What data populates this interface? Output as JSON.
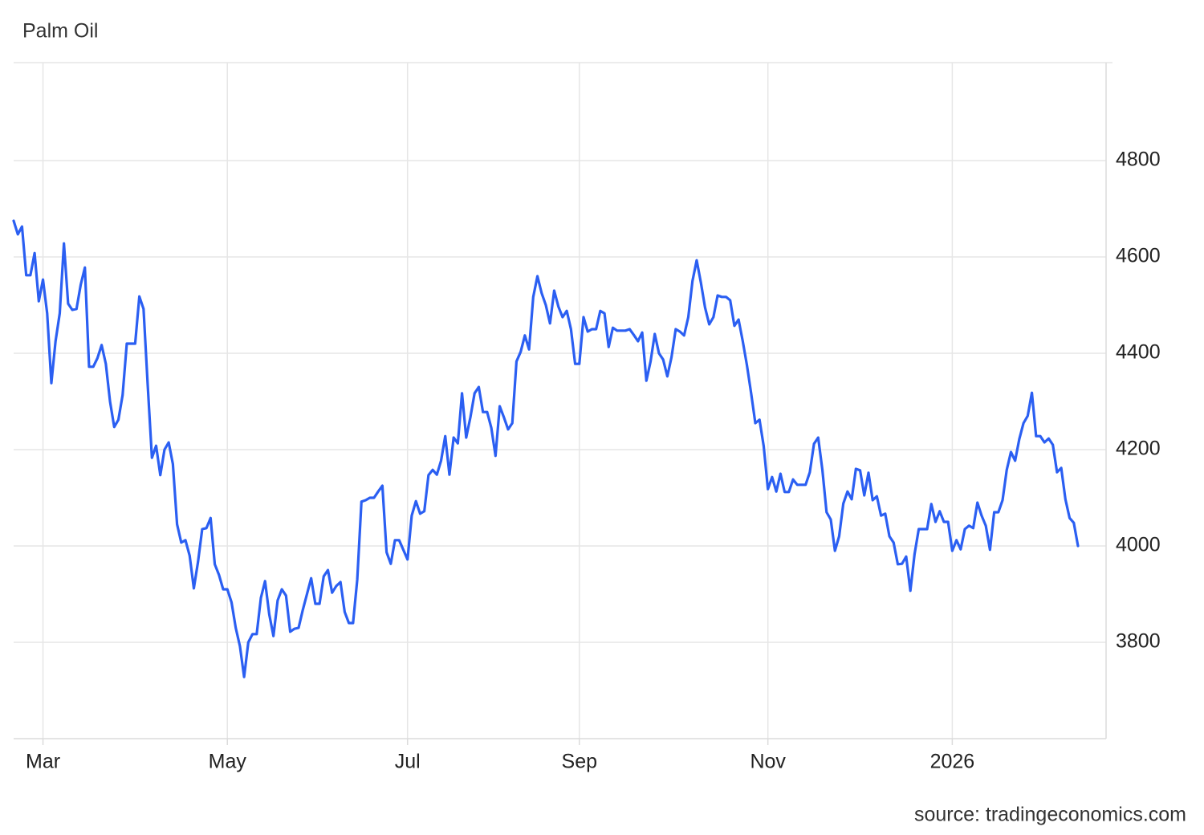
{
  "chart_data": {
    "type": "line",
    "title": "Palm Oil",
    "source": "source: tradingeconomics.com",
    "color": "#2b5ff2",
    "grid": true,
    "ylim": [
      3600,
      5000
    ],
    "yticks": [
      3800,
      4000,
      4200,
      4400,
      4600,
      4800
    ],
    "categories": [
      null,
      null,
      null,
      null,
      null,
      null,
      null,
      "Mar",
      null,
      null,
      null,
      null,
      null,
      null,
      null,
      null,
      null,
      null,
      null,
      null,
      null,
      null,
      null,
      null,
      null,
      null,
      null,
      null,
      null,
      null,
      null,
      null,
      null,
      null,
      null,
      null,
      null,
      null,
      null,
      null,
      null,
      null,
      null,
      null,
      null,
      null,
      null,
      null,
      null,
      null,
      null,
      "May",
      null,
      null,
      null,
      null,
      null,
      null,
      null,
      null,
      null,
      null,
      null,
      null,
      null,
      null,
      null,
      null,
      null,
      null,
      null,
      null,
      null,
      null,
      null,
      null,
      null,
      null,
      null,
      null,
      null,
      null,
      null,
      null,
      null,
      null,
      null,
      null,
      null,
      null,
      null,
      null,
      null,
      null,
      "Jul",
      null,
      null,
      null,
      null,
      null,
      null,
      null,
      null,
      null,
      null,
      null,
      null,
      null,
      null,
      null,
      null,
      null,
      null,
      null,
      null,
      null,
      null,
      null,
      null,
      null,
      null,
      null,
      null,
      null,
      null,
      null,
      null,
      null,
      null,
      null,
      null,
      null,
      null,
      null,
      null,
      "Sep",
      null,
      null,
      null,
      null,
      null,
      null,
      null,
      null,
      null,
      null,
      null,
      null,
      null,
      null,
      null,
      null,
      null,
      null,
      null,
      null,
      null,
      null,
      null,
      null,
      null,
      null,
      null,
      null,
      null,
      null,
      null,
      null,
      null,
      null,
      null,
      null,
      null,
      null,
      null,
      null,
      null,
      null,
      null,
      null,
      "Nov",
      null,
      null,
      null,
      null,
      null,
      null,
      null,
      null,
      null,
      null,
      null,
      null,
      null,
      null,
      null,
      null,
      null,
      null,
      null,
      null,
      null,
      null,
      null,
      null,
      null,
      null,
      null,
      null,
      null,
      null,
      null,
      null,
      null,
      null,
      null,
      null,
      null,
      null,
      null,
      null,
      null,
      null,
      null,
      "2026",
      null,
      null,
      null,
      null,
      null,
      null,
      null,
      null,
      null,
      null,
      null,
      null,
      null,
      null,
      null,
      null,
      null,
      null,
      null,
      null,
      null,
      null,
      null,
      null,
      null,
      null,
      null,
      null,
      null,
      null
    ],
    "values": [
      4675,
      4647,
      4663,
      4562,
      4562,
      4608,
      4508,
      4553,
      4483,
      4338,
      4425,
      4483,
      4628,
      4503,
      4490,
      4492,
      4542,
      4578,
      4372,
      4372,
      4390,
      4417,
      4378,
      4300,
      4247,
      4262,
      4313,
      4420,
      4420,
      4420,
      4518,
      4492,
      4333,
      4183,
      4208,
      4147,
      4200,
      4215,
      4170,
      4045,
      4007,
      4012,
      3980,
      3912,
      3967,
      4035,
      4037,
      4058,
      3962,
      3940,
      3910,
      3910,
      3883,
      3830,
      3792,
      3728,
      3800,
      3817,
      3817,
      3892,
      3927,
      3858,
      3813,
      3887,
      3910,
      3897,
      3822,
      3828,
      3830,
      3867,
      3900,
      3933,
      3880,
      3880,
      3937,
      3950,
      3903,
      3917,
      3925,
      3863,
      3840,
      3840,
      3930,
      4092,
      4095,
      4100,
      4100,
      4113,
      4125,
      3987,
      3963,
      4012,
      4012,
      3992,
      3972,
      4063,
      4093,
      4067,
      4072,
      4147,
      4158,
      4148,
      4177,
      4228,
      4148,
      4225,
      4213,
      4317,
      4225,
      4267,
      4317,
      4330,
      4278,
      4278,
      4245,
      4187,
      4290,
      4267,
      4242,
      4255,
      4383,
      4403,
      4437,
      4408,
      4517,
      4560,
      4525,
      4500,
      4462,
      4530,
      4497,
      4475,
      4488,
      4450,
      4378,
      4378,
      4475,
      4445,
      4450,
      4450,
      4488,
      4483,
      4413,
      4453,
      4447,
      4447,
      4447,
      4450,
      4438,
      4425,
      4443,
      4343,
      4383,
      4440,
      4400,
      4387,
      4352,
      4392,
      4450,
      4445,
      4437,
      4475,
      4550,
      4593,
      4547,
      4495,
      4460,
      4475,
      4520,
      4517,
      4517,
      4510,
      4457,
      4470,
      4425,
      4375,
      4317,
      4255,
      4262,
      4207,
      4118,
      4143,
      4113,
      4150,
      4112,
      4112,
      4138,
      4127,
      4127,
      4127,
      4153,
      4212,
      4225,
      4158,
      4070,
      4055,
      3990,
      4020,
      4088,
      4113,
      4097,
      4160,
      4157,
      4105,
      4152,
      4095,
      4103,
      4063,
      4067,
      4020,
      4007,
      3962,
      3963,
      3978,
      3907,
      3983,
      4035,
      4035,
      4035,
      4087,
      4050,
      4072,
      4050,
      4050,
      3990,
      4012,
      3993,
      4035,
      4042,
      4037,
      4090,
      4063,
      4042,
      3992,
      4070,
      4070,
      4095,
      4158,
      4195,
      4177,
      4222,
      4255,
      4270,
      4318,
      4228,
      4228,
      4215,
      4223,
      4210,
      4153,
      4162,
      4097,
      4058,
      4048,
      4000
    ]
  }
}
